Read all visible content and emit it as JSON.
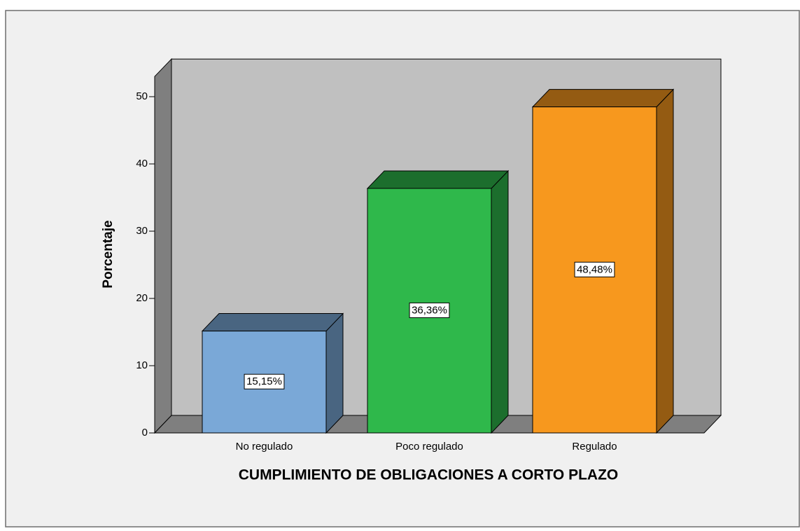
{
  "chart_data": {
    "type": "bar3d",
    "x_label": "CUMPLIMIENTO DE OBLIGACIONES A CORTO PLAZO",
    "y_label": "Porcentaje",
    "categories": [
      "No regulado",
      "Poco regulado",
      "Regulado"
    ],
    "values": [
      15.15,
      36.36,
      48.48
    ],
    "value_labels": [
      "15,15%",
      "36,36%",
      "48,48%"
    ],
    "colors": [
      "#7aa8d7",
      "#2fb84b",
      "#f7981e"
    ],
    "ylim": [
      0,
      53
    ],
    "yticks": [
      0,
      10,
      20,
      30,
      40,
      50
    ]
  }
}
